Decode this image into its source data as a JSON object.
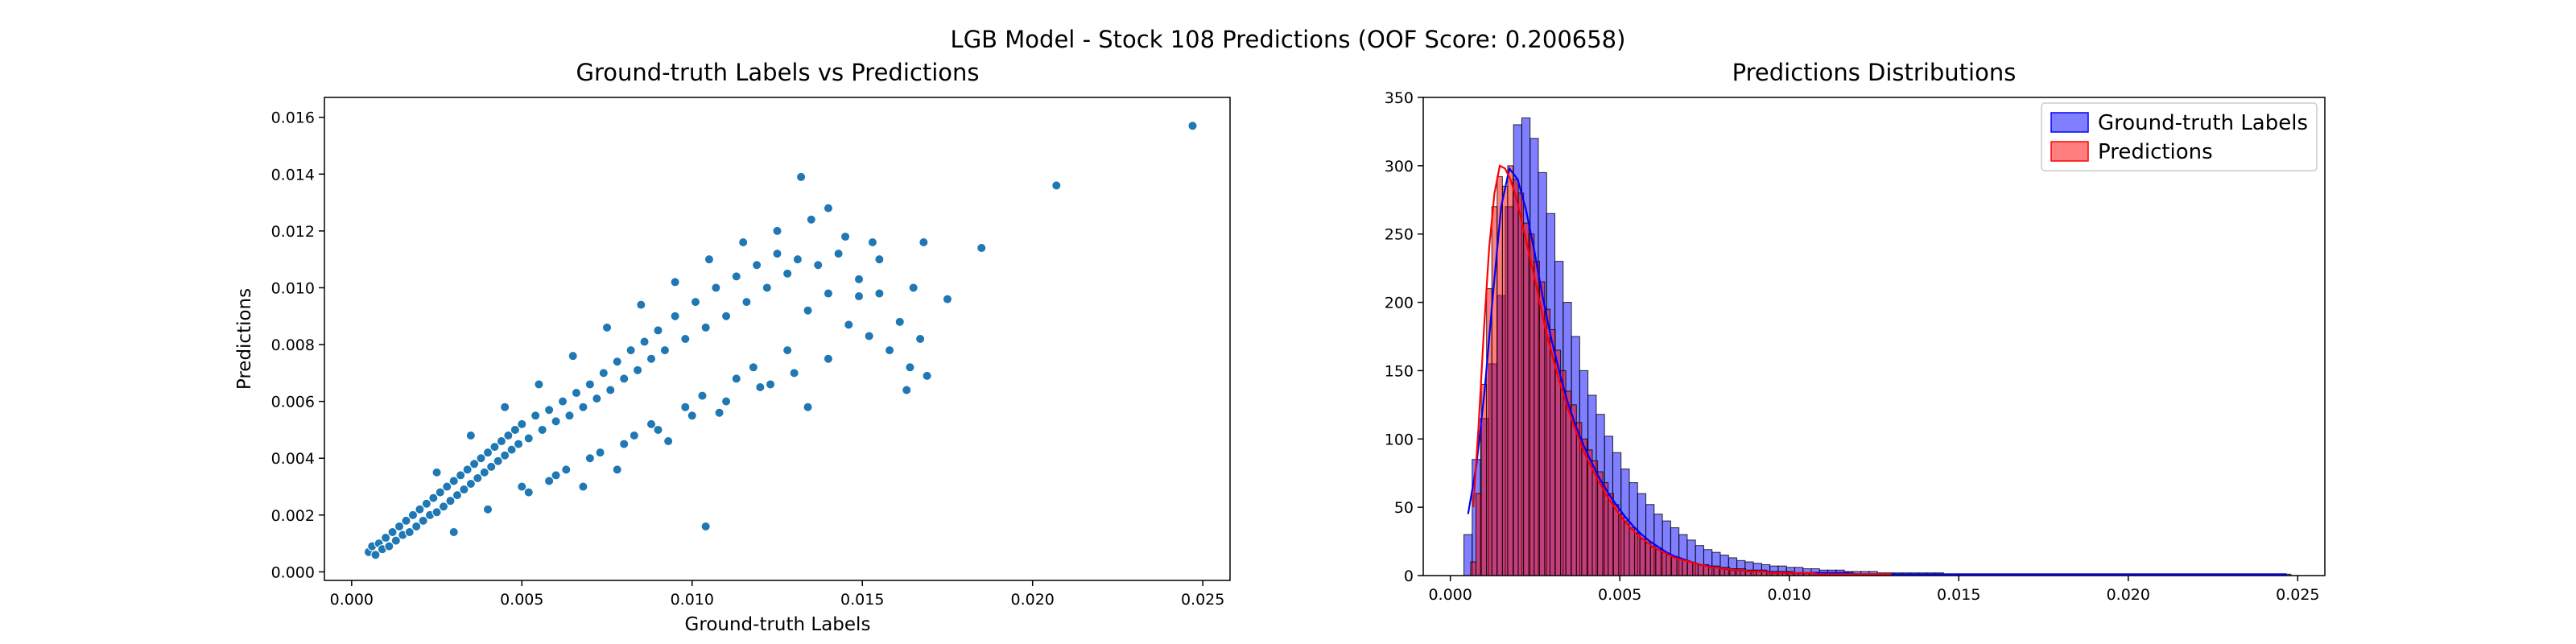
{
  "figure": {
    "suptitle": "LGB Model - Stock 108 Predictions (OOF Score: 0.200658)"
  },
  "chart_data": [
    {
      "type": "scatter",
      "title": "Ground-truth Labels vs Predictions",
      "xlabel": "Ground-truth Labels",
      "ylabel": "Predictions",
      "xlim": [
        -0.0008,
        0.0258
      ],
      "ylim": [
        -0.0003,
        0.0167
      ],
      "xticks": [
        0.0,
        0.005,
        0.01,
        0.015,
        0.02,
        0.025
      ],
      "xtick_labels": [
        "0.000",
        "0.005",
        "0.010",
        "0.015",
        "0.020",
        "0.025"
      ],
      "yticks": [
        0.0,
        0.002,
        0.004,
        0.006,
        0.008,
        0.01,
        0.012,
        0.014,
        0.016
      ],
      "ytick_labels": [
        "0.000",
        "0.002",
        "0.004",
        "0.006",
        "0.008",
        "0.010",
        "0.012",
        "0.014",
        "0.016"
      ],
      "grid": false,
      "point_color": "#1f77b4",
      "points": [
        [
          0.0005,
          0.0007
        ],
        [
          0.0006,
          0.0009
        ],
        [
          0.0007,
          0.0006
        ],
        [
          0.0008,
          0.001
        ],
        [
          0.0009,
          0.0008
        ],
        [
          0.001,
          0.0012
        ],
        [
          0.0011,
          0.0009
        ],
        [
          0.0012,
          0.0014
        ],
        [
          0.0013,
          0.0011
        ],
        [
          0.0014,
          0.0016
        ],
        [
          0.0015,
          0.0013
        ],
        [
          0.0016,
          0.0018
        ],
        [
          0.0017,
          0.0014
        ],
        [
          0.0018,
          0.002
        ],
        [
          0.0019,
          0.0016
        ],
        [
          0.002,
          0.0022
        ],
        [
          0.0021,
          0.0018
        ],
        [
          0.0022,
          0.0024
        ],
        [
          0.0023,
          0.002
        ],
        [
          0.0024,
          0.0026
        ],
        [
          0.0025,
          0.0021
        ],
        [
          0.0026,
          0.0028
        ],
        [
          0.0027,
          0.0023
        ],
        [
          0.0028,
          0.003
        ],
        [
          0.0029,
          0.0025
        ],
        [
          0.003,
          0.0032
        ],
        [
          0.0031,
          0.0027
        ],
        [
          0.0032,
          0.0034
        ],
        [
          0.0033,
          0.0029
        ],
        [
          0.0034,
          0.0036
        ],
        [
          0.0035,
          0.0031
        ],
        [
          0.0036,
          0.0038
        ],
        [
          0.0037,
          0.0033
        ],
        [
          0.0038,
          0.004
        ],
        [
          0.0039,
          0.0035
        ],
        [
          0.004,
          0.0042
        ],
        [
          0.0041,
          0.0037
        ],
        [
          0.0042,
          0.0044
        ],
        [
          0.0043,
          0.0039
        ],
        [
          0.0044,
          0.0046
        ],
        [
          0.0045,
          0.0041
        ],
        [
          0.0046,
          0.0048
        ],
        [
          0.0047,
          0.0043
        ],
        [
          0.0048,
          0.005
        ],
        [
          0.0049,
          0.0045
        ],
        [
          0.005,
          0.0052
        ],
        [
          0.0052,
          0.0047
        ],
        [
          0.0054,
          0.0055
        ],
        [
          0.0056,
          0.005
        ],
        [
          0.0058,
          0.0057
        ],
        [
          0.006,
          0.0053
        ],
        [
          0.0062,
          0.006
        ],
        [
          0.0064,
          0.0055
        ],
        [
          0.0066,
          0.0063
        ],
        [
          0.0068,
          0.0058
        ],
        [
          0.007,
          0.0066
        ],
        [
          0.0072,
          0.0061
        ],
        [
          0.0074,
          0.007
        ],
        [
          0.0076,
          0.0064
        ],
        [
          0.0078,
          0.0074
        ],
        [
          0.008,
          0.0068
        ],
        [
          0.0082,
          0.0078
        ],
        [
          0.0084,
          0.0071
        ],
        [
          0.0086,
          0.0081
        ],
        [
          0.0088,
          0.0075
        ],
        [
          0.009,
          0.0085
        ],
        [
          0.0092,
          0.0078
        ],
        [
          0.0095,
          0.009
        ],
        [
          0.0098,
          0.0082
        ],
        [
          0.0101,
          0.0095
        ],
        [
          0.0104,
          0.0086
        ],
        [
          0.0107,
          0.01
        ],
        [
          0.011,
          0.009
        ],
        [
          0.0113,
          0.0104
        ],
        [
          0.0116,
          0.0095
        ],
        [
          0.0119,
          0.0108
        ],
        [
          0.0122,
          0.01
        ],
        [
          0.0125,
          0.0112
        ],
        [
          0.0128,
          0.0105
        ],
        [
          0.0131,
          0.011
        ],
        [
          0.0134,
          0.0092
        ],
        [
          0.0137,
          0.0108
        ],
        [
          0.014,
          0.0098
        ],
        [
          0.0143,
          0.0112
        ],
        [
          0.0146,
          0.0087
        ],
        [
          0.0149,
          0.0103
        ],
        [
          0.0152,
          0.0083
        ],
        [
          0.0155,
          0.0098
        ],
        [
          0.0158,
          0.0078
        ],
        [
          0.0161,
          0.0088
        ],
        [
          0.0164,
          0.0072
        ],
        [
          0.0167,
          0.0082
        ],
        [
          0.003,
          0.0014
        ],
        [
          0.004,
          0.0022
        ],
        [
          0.005,
          0.003
        ],
        [
          0.006,
          0.0034
        ],
        [
          0.007,
          0.004
        ],
        [
          0.008,
          0.0045
        ],
        [
          0.009,
          0.005
        ],
        [
          0.01,
          0.0055
        ],
        [
          0.011,
          0.006
        ],
        [
          0.012,
          0.0065
        ],
        [
          0.013,
          0.007
        ],
        [
          0.014,
          0.0075
        ],
        [
          0.0025,
          0.0035
        ],
        [
          0.0035,
          0.0048
        ],
        [
          0.0045,
          0.0058
        ],
        [
          0.0055,
          0.0066
        ],
        [
          0.0065,
          0.0076
        ],
        [
          0.0075,
          0.0086
        ],
        [
          0.0085,
          0.0094
        ],
        [
          0.0095,
          0.0102
        ],
        [
          0.0105,
          0.011
        ],
        [
          0.0115,
          0.0116
        ],
        [
          0.0125,
          0.012
        ],
        [
          0.0135,
          0.0124
        ],
        [
          0.0145,
          0.0118
        ],
        [
          0.0155,
          0.011
        ],
        [
          0.0165,
          0.01
        ],
        [
          0.0175,
          0.0096
        ],
        [
          0.0052,
          0.0028
        ],
        [
          0.0058,
          0.0032
        ],
        [
          0.0063,
          0.0036
        ],
        [
          0.0068,
          0.003
        ],
        [
          0.0073,
          0.0042
        ],
        [
          0.0078,
          0.0036
        ],
        [
          0.0083,
          0.0048
        ],
        [
          0.0088,
          0.0052
        ],
        [
          0.0093,
          0.0046
        ],
        [
          0.0098,
          0.0058
        ],
        [
          0.0103,
          0.0062
        ],
        [
          0.0108,
          0.0056
        ],
        [
          0.0113,
          0.0068
        ],
        [
          0.0118,
          0.0072
        ],
        [
          0.0123,
          0.0066
        ],
        [
          0.0128,
          0.0078
        ],
        [
          0.0185,
          0.0114
        ],
        [
          0.0207,
          0.0136
        ],
        [
          0.0247,
          0.0157
        ],
        [
          0.0132,
          0.0139
        ],
        [
          0.0104,
          0.0016
        ],
        [
          0.0163,
          0.0064
        ],
        [
          0.0169,
          0.0069
        ],
        [
          0.0168,
          0.0116
        ],
        [
          0.0134,
          0.0058
        ],
        [
          0.014,
          0.0128
        ],
        [
          0.0153,
          0.0116
        ],
        [
          0.0149,
          0.0097
        ]
      ]
    },
    {
      "type": "histogram",
      "title": "Predictions Distributions",
      "xlabel": "",
      "ylabel": "",
      "xlim": [
        -0.0008,
        0.0258
      ],
      "ylim": [
        0,
        350
      ],
      "xticks": [
        0.0,
        0.005,
        0.01,
        0.015,
        0.02,
        0.025
      ],
      "xtick_labels": [
        "0.000",
        "0.005",
        "0.010",
        "0.015",
        "0.020",
        "0.025"
      ],
      "yticks": [
        0,
        50,
        100,
        150,
        200,
        250,
        300,
        350
      ],
      "ytick_labels": [
        "0",
        "50",
        "100",
        "150",
        "200",
        "250",
        "300",
        "350"
      ],
      "grid": false,
      "legend_position": "top-right",
      "series": [
        {
          "name": "Ground-truth Labels",
          "color": "#0000ff",
          "bin_start": 0.0004,
          "bin_width": 0.000244,
          "counts": [
            30,
            85,
            115,
            155,
            205,
            270,
            330,
            335,
            320,
            295,
            265,
            230,
            200,
            175,
            150,
            132,
            118,
            102,
            90,
            78,
            68,
            60,
            52,
            45,
            40,
            35,
            30,
            26,
            22,
            19,
            17,
            15,
            13,
            11,
            10,
            9,
            8,
            7,
            7,
            6,
            6,
            5,
            5,
            4,
            4,
            4,
            3,
            3,
            3,
            3,
            2,
            2,
            2,
            2,
            2,
            2,
            2,
            2,
            1,
            1,
            1,
            1,
            1,
            1,
            1,
            1,
            1,
            1,
            1,
            1,
            1,
            1,
            1,
            1,
            1,
            1,
            1,
            1,
            1,
            1,
            1,
            1,
            1,
            1,
            1,
            1,
            1,
            1,
            1,
            1,
            1,
            1,
            1,
            1,
            1,
            1,
            1,
            1,
            1,
            1
          ],
          "kde": [
            45,
            80,
            135,
            205,
            270,
            298,
            290,
            268,
            238,
            205,
            175,
            150,
            128,
            110,
            95,
            82,
            70,
            60,
            51,
            43,
            36,
            30,
            25,
            21,
            17,
            14,
            12,
            10,
            8,
            7,
            6,
            5,
            4,
            4,
            3,
            3,
            3,
            2,
            2,
            2,
            2,
            2,
            2,
            2,
            2,
            2,
            2,
            1,
            1,
            1,
            1,
            1,
            1,
            1,
            1,
            1,
            1,
            1,
            1,
            1,
            1,
            1,
            1,
            1,
            1,
            1,
            1,
            1,
            1,
            1,
            1,
            1,
            1,
            1,
            1,
            1,
            1,
            1,
            1,
            1,
            1,
            1,
            1,
            1,
            1,
            1,
            1,
            1,
            1,
            1,
            1,
            1,
            1,
            1,
            1,
            1,
            1,
            1,
            1,
            1
          ]
        },
        {
          "name": "Predictions",
          "color": "#ff0000",
          "bin_start": 0.0006,
          "bin_width": 0.000156,
          "counts": [
            10,
            60,
            140,
            210,
            270,
            292,
            285,
            300,
            290,
            280,
            258,
            250,
            230,
            215,
            195,
            180,
            165,
            150,
            135,
            125,
            112,
            100,
            92,
            84,
            76,
            68,
            60,
            52,
            45,
            40,
            35,
            31,
            27,
            24,
            21,
            19,
            17,
            15,
            14,
            12,
            11,
            10,
            9,
            8,
            8,
            7,
            7,
            6,
            6,
            5,
            5,
            5,
            4,
            4,
            4,
            4,
            3,
            3,
            3,
            3,
            3,
            2,
            2,
            2,
            2,
            2,
            2,
            2,
            2,
            2,
            2,
            2,
            1,
            1,
            1,
            1,
            1,
            1,
            1,
            1
          ],
          "kde": [
            50,
            110,
            180,
            240,
            280,
            300,
            298,
            290,
            278,
            262,
            245,
            228,
            210,
            192,
            175,
            160,
            146,
            133,
            121,
            110,
            100,
            90,
            82,
            74,
            67,
            60,
            54,
            48,
            43,
            38,
            34,
            30,
            27,
            24,
            21,
            19,
            17,
            15,
            13,
            12,
            11,
            10,
            9,
            8,
            7,
            6,
            6,
            5,
            5,
            4,
            4,
            4,
            3,
            3,
            3,
            3,
            2,
            2,
            2,
            2,
            2,
            2,
            2,
            2,
            2,
            1,
            1,
            1,
            1,
            1,
            1,
            1,
            1,
            1,
            1,
            1,
            1,
            1,
            1,
            1
          ]
        }
      ]
    }
  ]
}
